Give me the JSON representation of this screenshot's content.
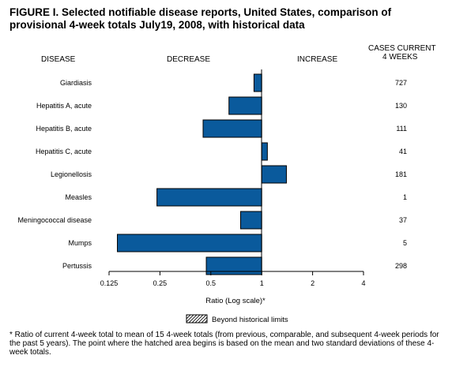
{
  "title": "FIGURE I. Selected notifiable disease reports, United States, comparison of provisional 4-week totals July19, 2008, with historical data",
  "headers": {
    "disease": "DISEASE",
    "decrease": "DECREASE",
    "increase": "INCREASE",
    "cases_line1": "CASES CURRENT",
    "cases_line2": "4 WEEKS"
  },
  "legend": {
    "label": "Beyond historical limits"
  },
  "footnote": "* Ratio of current 4-week total to mean of 15 4-week totals (from previous, comparable, and subsequent 4-week periods for the past 5 years). The point where the hatched area begins is based on the mean and two standard deviations of these 4-week totals.",
  "colors": {
    "bar": "#0a5a9c",
    "bar_stroke": "#000000"
  },
  "chart_data": {
    "type": "bar",
    "orientation": "horizontal",
    "xscale": "log2",
    "xlim": [
      0.125,
      4
    ],
    "xlabel": "Ratio (Log scale)*",
    "xticks": [
      0.125,
      0.25,
      0.5,
      1,
      2,
      4
    ],
    "xtick_labels": [
      "0.125",
      "0.25",
      "0.5",
      "1",
      "2",
      "4"
    ],
    "baseline": 1,
    "categories": [
      "Giardiasis",
      "Hepatitis A, acute",
      "Hepatitis B, acute",
      "Hepatitis C, acute",
      "Legionellosis",
      "Measles",
      "Meningococcal disease",
      "Mumps",
      "Pertussis"
    ],
    "values": [
      0.9,
      0.64,
      0.45,
      1.08,
      1.4,
      0.24,
      0.75,
      0.14,
      0.47
    ],
    "cases_current_4_weeks": [
      "727",
      "130",
      "111",
      "41",
      "181",
      "1",
      "37",
      "5",
      "298"
    ]
  }
}
